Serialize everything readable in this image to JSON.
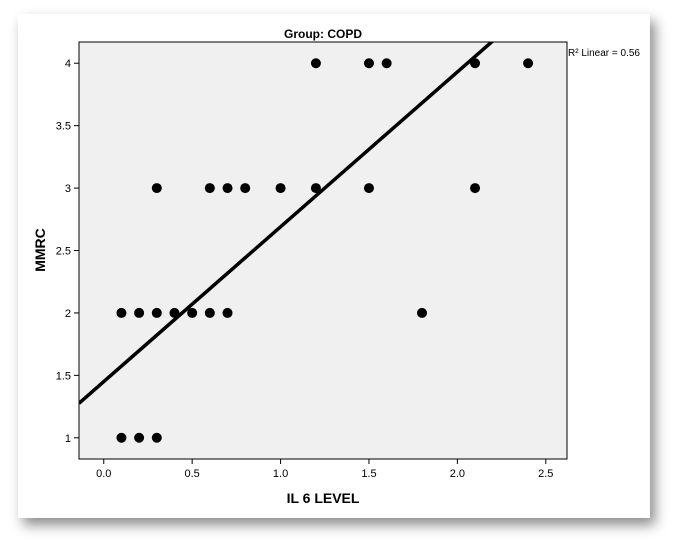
{
  "chart_data": {
    "type": "scatter",
    "title": "Group: COPD",
    "xlabel": "IL 6 LEVEL",
    "ylabel": "MMRC",
    "xlim": [
      -0.14,
      2.62
    ],
    "ylim": [
      0.83,
      4.17
    ],
    "xticks": [
      "0.0",
      "0.5",
      "1.0",
      "1.5",
      "2.0",
      "2.5"
    ],
    "yticks": [
      "1",
      "1.5",
      "2",
      "2.5",
      "3",
      "3.5",
      "4"
    ],
    "grid": false,
    "points": [
      {
        "x": 0.1,
        "y": 1
      },
      {
        "x": 0.2,
        "y": 1
      },
      {
        "x": 0.3,
        "y": 1
      },
      {
        "x": 0.1,
        "y": 2
      },
      {
        "x": 0.2,
        "y": 2
      },
      {
        "x": 0.3,
        "y": 2
      },
      {
        "x": 0.4,
        "y": 2
      },
      {
        "x": 0.5,
        "y": 2
      },
      {
        "x": 0.6,
        "y": 2
      },
      {
        "x": 0.7,
        "y": 2
      },
      {
        "x": 1.8,
        "y": 2
      },
      {
        "x": 0.3,
        "y": 3
      },
      {
        "x": 0.6,
        "y": 3
      },
      {
        "x": 0.7,
        "y": 3
      },
      {
        "x": 0.8,
        "y": 3
      },
      {
        "x": 1.0,
        "y": 3
      },
      {
        "x": 1.2,
        "y": 3
      },
      {
        "x": 1.5,
        "y": 3
      },
      {
        "x": 2.1,
        "y": 3
      },
      {
        "x": 1.2,
        "y": 4
      },
      {
        "x": 1.5,
        "y": 4
      },
      {
        "x": 1.6,
        "y": 4
      },
      {
        "x": 2.1,
        "y": 4
      },
      {
        "x": 2.4,
        "y": 4
      }
    ],
    "fit_line": {
      "label": "R² Linear = 0.56",
      "slope": 1.24,
      "intercept": 1.45
    },
    "colors": {
      "plot_background": "#f0f0f0",
      "marker": "#000000",
      "line": "#000000"
    }
  }
}
